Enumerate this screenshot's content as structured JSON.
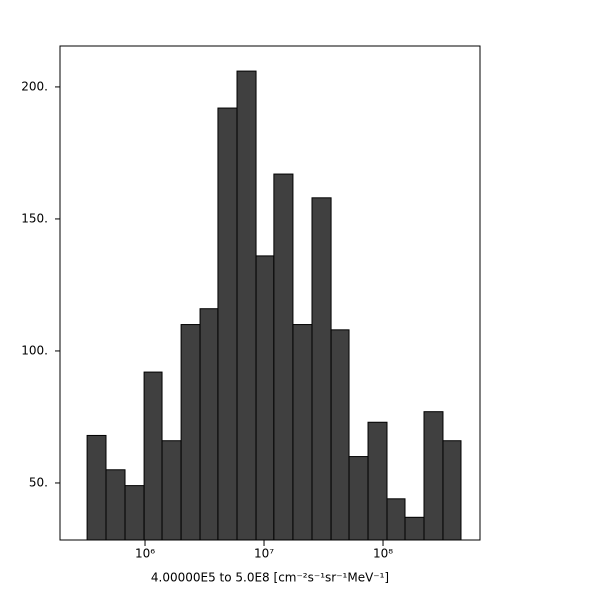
{
  "chart_data": {
    "type": "histogram",
    "xlabel": "4.00000E5 to 5.0E8 [cm⁻²s⁻¹sr⁻¹MeV⁻¹]",
    "bins": [
      326000,
      470000,
      679000,
      982000,
      1390000,
      2010000,
      2900000,
      4100000,
      5930000,
      8570000,
      12100000,
      17500000,
      25300000,
      36600000,
      51800000,
      74800000,
      108000000,
      153000000,
      221000000,
      319000000,
      452000000
    ],
    "values": [
      68,
      55,
      49,
      92,
      66,
      110,
      116,
      192,
      206,
      136,
      167,
      110,
      158,
      108,
      60,
      73,
      44,
      37,
      77,
      66
    ],
    "color": "#404040",
    "xscale": "log",
    "xlim": [
      193000,
      653000000
    ],
    "ylim": [
      28.4,
      215.5
    ],
    "xticks": [
      {
        "value": 1000000,
        "label": "10⁶"
      },
      {
        "value": 10000000,
        "label": "10⁷"
      },
      {
        "value": 100000000,
        "label": "10⁸"
      }
    ],
    "yticks": [
      {
        "value": 50,
        "label": "50."
      },
      {
        "value": 100,
        "label": "100."
      },
      {
        "value": 150,
        "label": "150."
      },
      {
        "value": 200,
        "label": "200."
      }
    ]
  }
}
